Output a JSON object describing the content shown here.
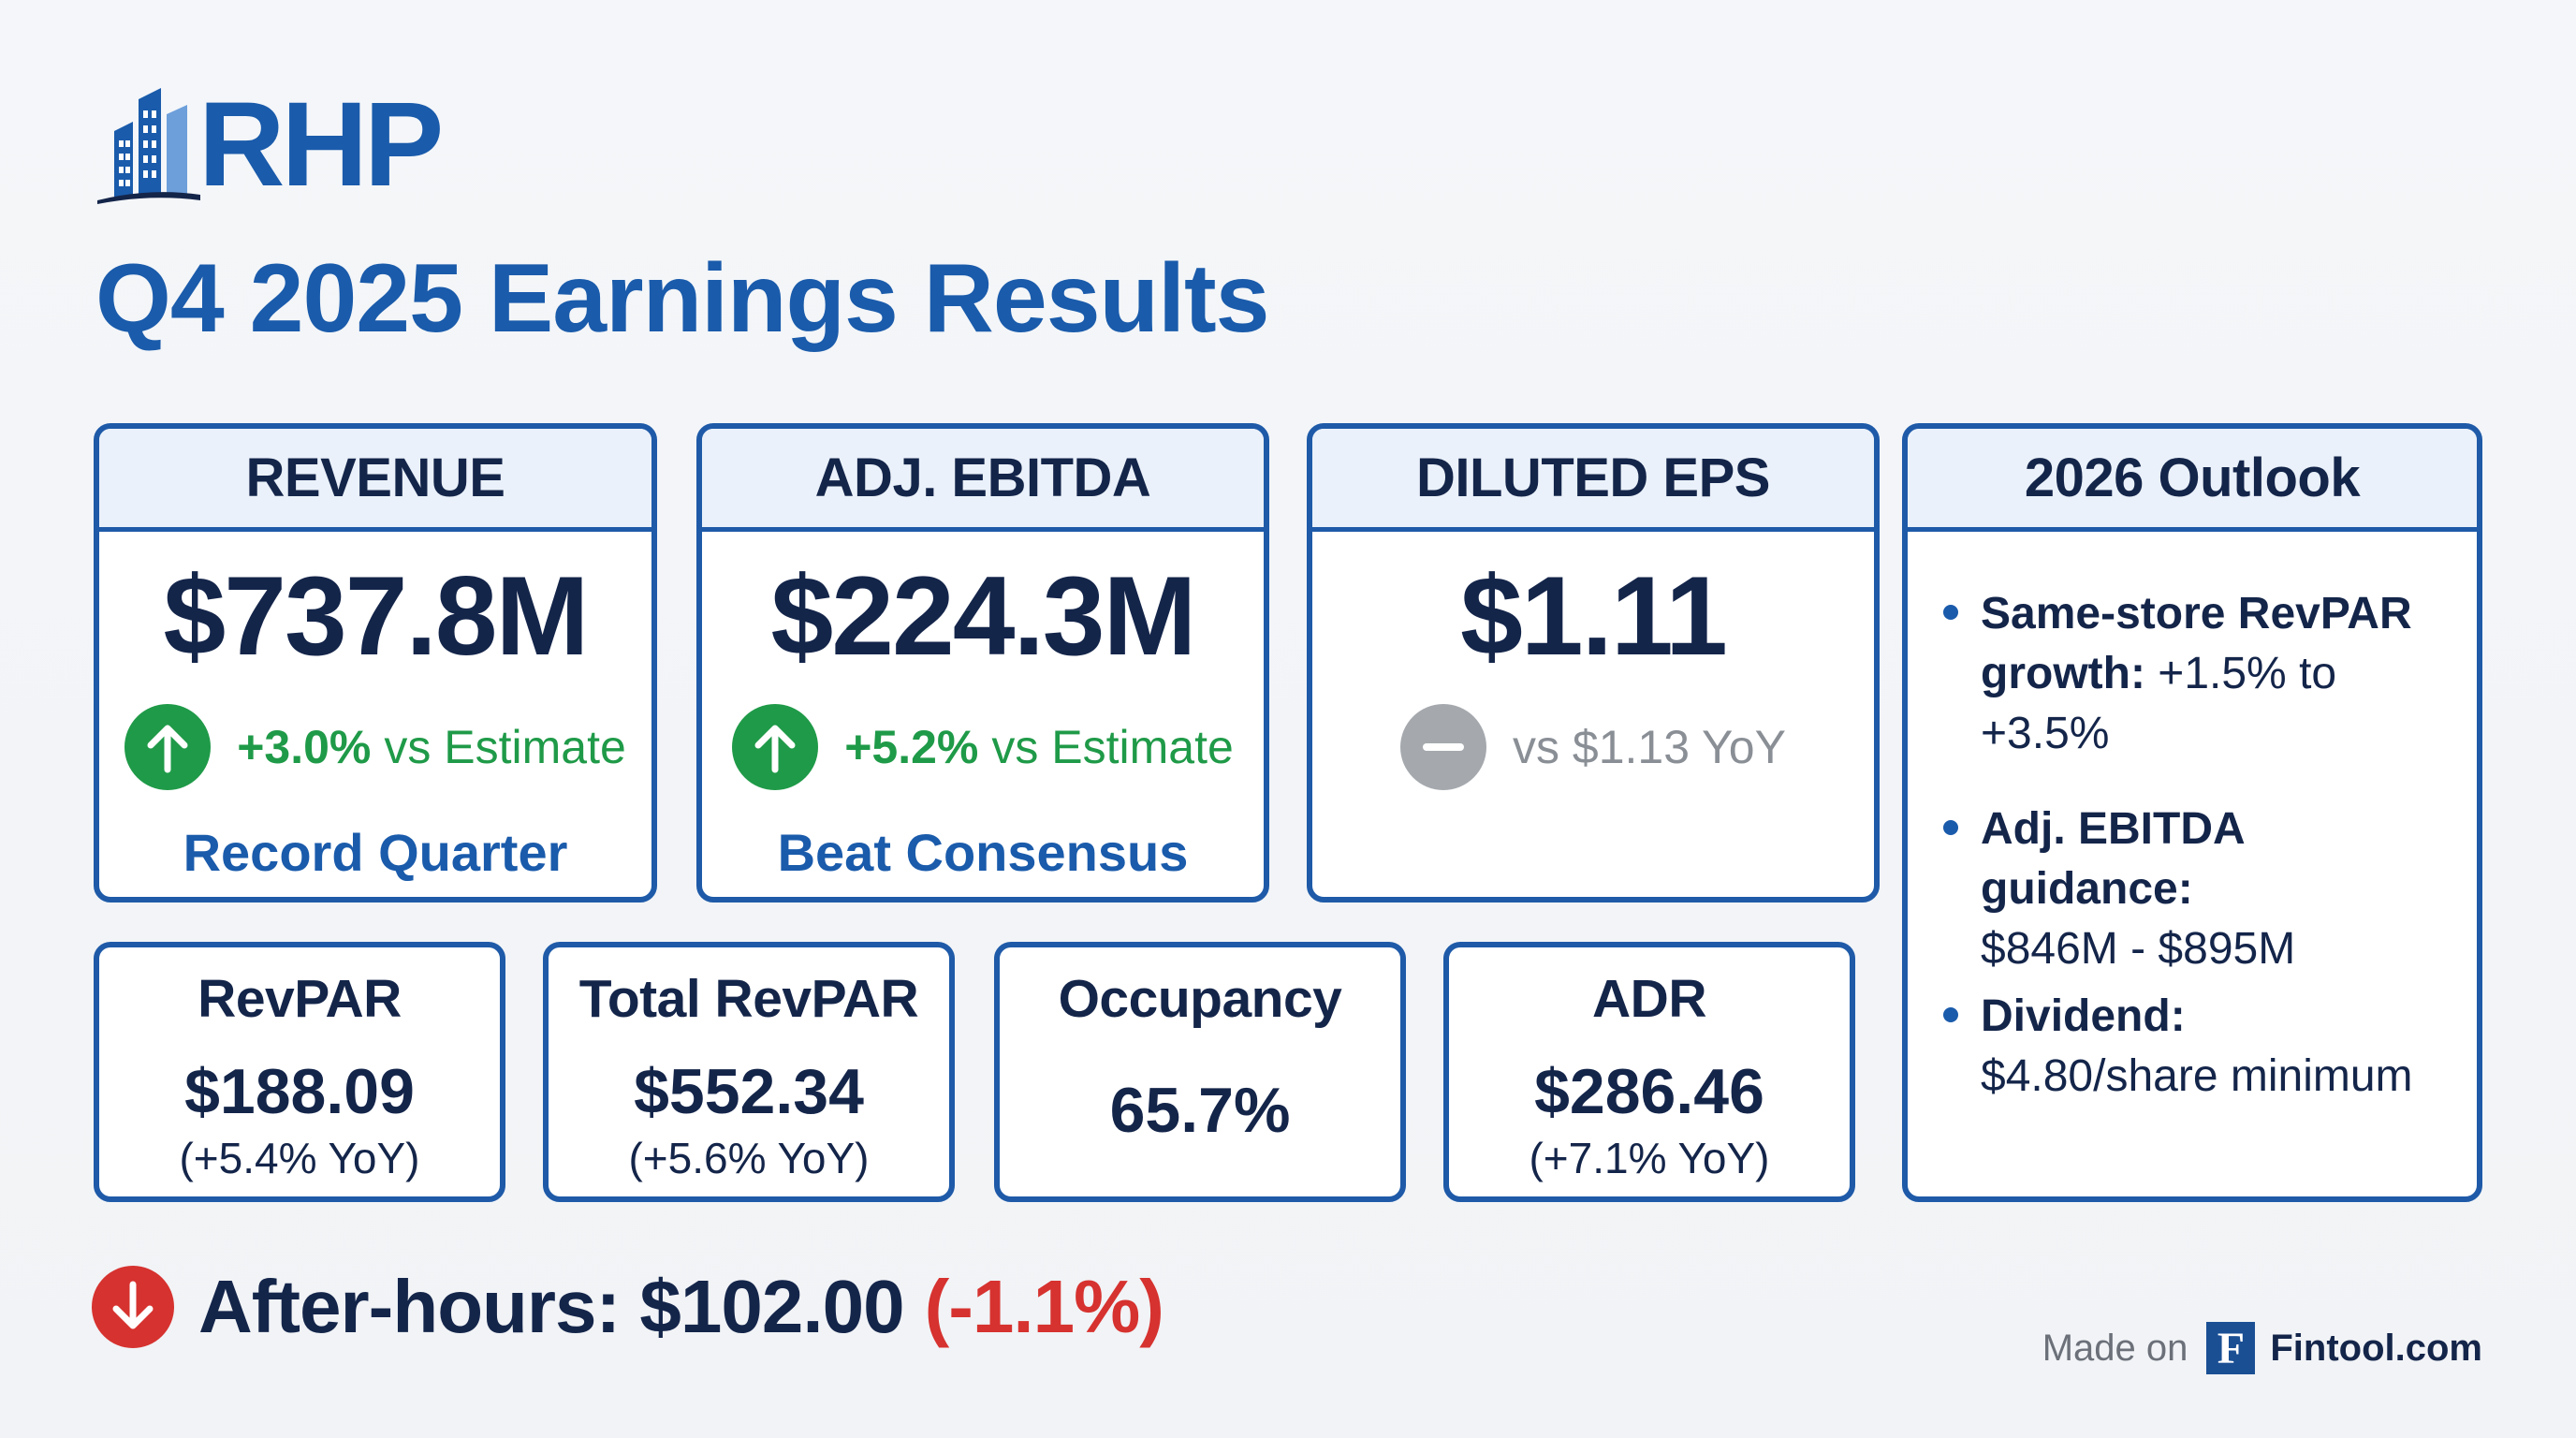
{
  "brand": {
    "logo_text": "RHP",
    "logo_icon": "building-icon",
    "primary_color": "#1a5bab",
    "navy_color": "#14254a"
  },
  "page_title": "Q4 2025 Earnings Results",
  "highlights": [
    {
      "header": "REVENUE",
      "value": "$737.8M",
      "direction": "up",
      "direction_icon": "arrow-up-icon",
      "change": "+3.0%",
      "comparison": "vs Estimate",
      "tagline": "Record Quarter"
    },
    {
      "header": "ADJ. EBITDA",
      "value": "$224.3M",
      "direction": "up",
      "direction_icon": "arrow-up-icon",
      "change": "+5.2%",
      "comparison": "vs Estimate",
      "tagline": "Beat Consensus"
    },
    {
      "header": "DILUTED EPS",
      "value": "$1.11",
      "direction": "flat",
      "direction_icon": "minus-icon",
      "comparison": "vs $1.13 YoY"
    }
  ],
  "metrics": [
    {
      "label": "RevPAR",
      "value": "$188.09",
      "change": "(+5.4% YoY)"
    },
    {
      "label": "Total RevPAR",
      "value": "$552.34",
      "change": "(+5.6% YoY)"
    },
    {
      "label": "Occupancy",
      "value": "65.7%"
    },
    {
      "label": "ADR",
      "value": "$286.46",
      "change": "(+7.1% YoY)"
    }
  ],
  "outlook": {
    "header": "2026 Outlook",
    "items": [
      {
        "label": "Same-store RevPAR growth:",
        "value": "+1.5% to +3.5%"
      },
      {
        "label": "Adj. EBITDA guidance:",
        "value": "$846M - $895M"
      },
      {
        "label": "Dividend:",
        "value": "$4.80/share minimum"
      }
    ]
  },
  "after_hours": {
    "icon": "arrow-down-icon",
    "label": "After-hours: $102.00",
    "change": "(-1.1%)",
    "color": "#d6322f"
  },
  "footer": {
    "made_on": "Made on",
    "logo_letter": "F",
    "site": "Fintool.com"
  },
  "colors": {
    "positive": "#1f9a48",
    "negative": "#d6322f",
    "neutral": "#a5a9ae",
    "card_border": "#1e5aa8",
    "header_bg": "#eaf1fa"
  }
}
